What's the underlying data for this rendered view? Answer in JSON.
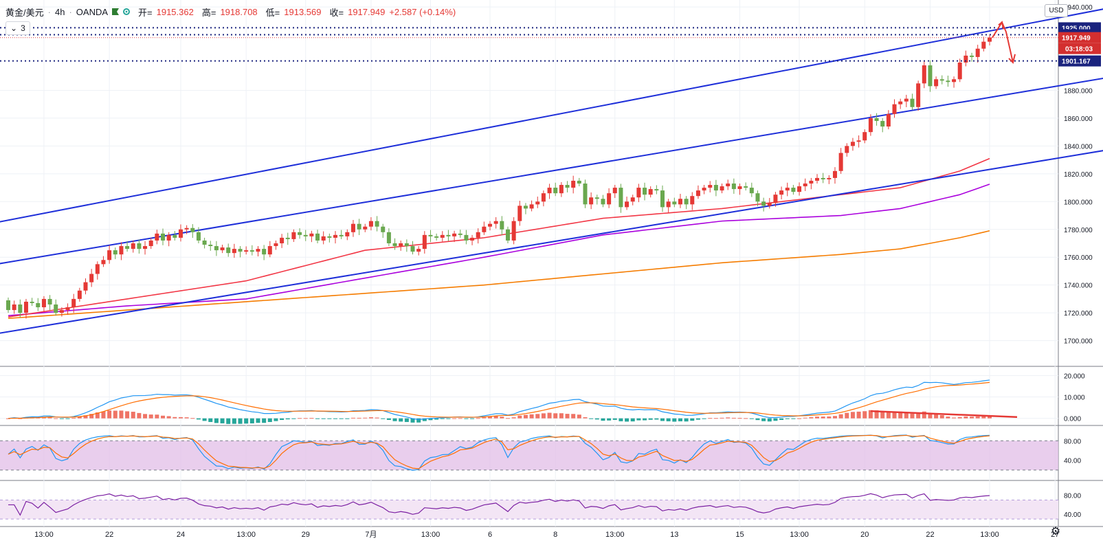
{
  "header": {
    "symbol": "黄金/美元",
    "interval": "4h",
    "source": "OANDA",
    "open_label": "开=",
    "open_value": "1915.362",
    "high_label": "高=",
    "high_value": "1918.708",
    "low_label": "低=",
    "low_value": "1913.569",
    "close_label": "收=",
    "close_value": "1917.949",
    "change": "+2.587 (+0.14%)",
    "indicator_count": "3",
    "currency": "USD"
  },
  "icons": {
    "flag": "flag-icon",
    "dot": "eye-dot-icon",
    "collapse": "chevron-down-icon",
    "settings": "gear-icon"
  },
  "chart_data": {
    "type": "candlestick",
    "main": {
      "ylim": [
        1682,
        1944
      ],
      "y_ticks": [
        "1700.000",
        "1720.000",
        "1740.000",
        "1760.000",
        "1780.000",
        "1800.000",
        "1820.000",
        "1840.000",
        "1860.000",
        "1880.000",
        "1940.000"
      ],
      "x_ticks": [
        {
          "i": 6,
          "label": "13:00"
        },
        {
          "i": 17,
          "label": "22"
        },
        {
          "i": 29,
          "label": "24"
        },
        {
          "i": 40,
          "label": "13:00"
        },
        {
          "i": 50,
          "label": "29"
        },
        {
          "i": 61,
          "label": "7月"
        },
        {
          "i": 71,
          "label": "13:00"
        },
        {
          "i": 81,
          "label": "6"
        },
        {
          "i": 92,
          "label": "8"
        },
        {
          "i": 102,
          "label": "13:00"
        },
        {
          "i": 112,
          "label": "13"
        },
        {
          "i": 123,
          "label": "15"
        },
        {
          "i": 133,
          "label": "13:00"
        },
        {
          "i": 144,
          "label": "20"
        },
        {
          "i": 155,
          "label": "22"
        },
        {
          "i": 165,
          "label": "13:00"
        },
        {
          "i": 176,
          "label": "27"
        }
      ],
      "closes": [
        1722,
        1726,
        1720,
        1728,
        1727,
        1724,
        1730,
        1726,
        1720,
        1722,
        1724,
        1730,
        1736,
        1742,
        1748,
        1755,
        1758,
        1765,
        1762,
        1768,
        1766,
        1770,
        1766,
        1768,
        1772,
        1777,
        1772,
        1776,
        1774,
        1780,
        1781,
        1778,
        1772,
        1769,
        1768,
        1765,
        1767,
        1763,
        1766,
        1764,
        1765,
        1764,
        1766,
        1762,
        1768,
        1770,
        1774,
        1773,
        1778,
        1776,
        1775,
        1777,
        1772,
        1775,
        1774,
        1776,
        1775,
        1778,
        1784,
        1780,
        1782,
        1786,
        1782,
        1778,
        1770,
        1768,
        1770,
        1768,
        1764,
        1766,
        1776,
        1775,
        1774,
        1776,
        1775,
        1777,
        1776,
        1772,
        1774,
        1778,
        1782,
        1784,
        1786,
        1780,
        1772,
        1786,
        1797,
        1795,
        1798,
        1800,
        1806,
        1810,
        1806,
        1812,
        1810,
        1815,
        1813,
        1798,
        1803,
        1802,
        1798,
        1806,
        1810,
        1796,
        1800,
        1803,
        1810,
        1805,
        1809,
        1808,
        1796,
        1800,
        1798,
        1802,
        1798,
        1804,
        1808,
        1810,
        1812,
        1808,
        1811,
        1813,
        1809,
        1811,
        1810,
        1806,
        1800,
        1797,
        1799,
        1805,
        1808,
        1810,
        1807,
        1811,
        1813,
        1815,
        1817,
        1816,
        1817,
        1822,
        1835,
        1840,
        1843,
        1844,
        1850,
        1860,
        1858,
        1854,
        1863,
        1870,
        1872,
        1874,
        1868,
        1885,
        1898,
        1883,
        1888,
        1887,
        1886,
        1888,
        1900,
        1905,
        1904,
        1910,
        1915,
        1918
      ],
      "start_open": 1729,
      "ma_red": {
        "start": 0,
        "pts": [
          [
            0,
            1717
          ],
          [
            20,
            1730
          ],
          [
            40,
            1743
          ],
          [
            60,
            1765
          ],
          [
            80,
            1774
          ],
          [
            100,
            1788
          ],
          [
            120,
            1795
          ],
          [
            140,
            1805
          ],
          [
            150,
            1810
          ],
          [
            160,
            1822
          ],
          [
            170,
            1840
          ],
          [
            178,
            1848
          ]
        ]
      },
      "ma_purple": {
        "start": 0,
        "pts": [
          [
            0,
            1718
          ],
          [
            20,
            1725
          ],
          [
            40,
            1730
          ],
          [
            60,
            1745
          ],
          [
            80,
            1760
          ],
          [
            100,
            1776
          ],
          [
            120,
            1786
          ],
          [
            140,
            1790
          ],
          [
            150,
            1795
          ],
          [
            160,
            1805
          ],
          [
            170,
            1820
          ],
          [
            178,
            1830
          ]
        ]
      },
      "ma_orange": {
        "start": 0,
        "pts": [
          [
            0,
            1716
          ],
          [
            20,
            1722
          ],
          [
            40,
            1728
          ],
          [
            60,
            1734
          ],
          [
            80,
            1740
          ],
          [
            100,
            1748
          ],
          [
            120,
            1756
          ],
          [
            140,
            1762
          ],
          [
            150,
            1766
          ],
          [
            160,
            1774
          ],
          [
            170,
            1784
          ],
          [
            178,
            1790
          ]
        ]
      },
      "trendlines": [
        {
          "from": [
            -2,
            1785
          ],
          "to": [
            186,
            1940
          ]
        },
        {
          "from": [
            -2,
            1755
          ],
          "to": [
            186,
            1890
          ]
        },
        {
          "from": [
            -2,
            1705
          ],
          "to": [
            186,
            1838
          ]
        }
      ],
      "hlines": [
        {
          "y": 1925.0,
          "label": "1925.000",
          "color": "#1a237e"
        },
        {
          "y": 1920.0,
          "label": "1920.000",
          "color": "#1a237e"
        },
        {
          "y": 1901.167,
          "label": "1901.167",
          "color": "#1a237e"
        }
      ],
      "last_price": {
        "value": 1917.949,
        "label": "1917.949",
        "timer": "03:18:03"
      }
    },
    "macd": {
      "ylim": [
        -3,
        24
      ],
      "y_ticks": [
        "20.000",
        "10.000",
        "0.000"
      ]
    },
    "stoch": {
      "ylim": [
        0,
        110
      ],
      "band": [
        20,
        80
      ],
      "y_ticks": [
        "80.00",
        "40.00"
      ]
    },
    "rsi": {
      "ylim": [
        20,
        110
      ],
      "band": [
        30,
        70
      ],
      "y_ticks": [
        "80.00",
        "40.00"
      ]
    }
  }
}
